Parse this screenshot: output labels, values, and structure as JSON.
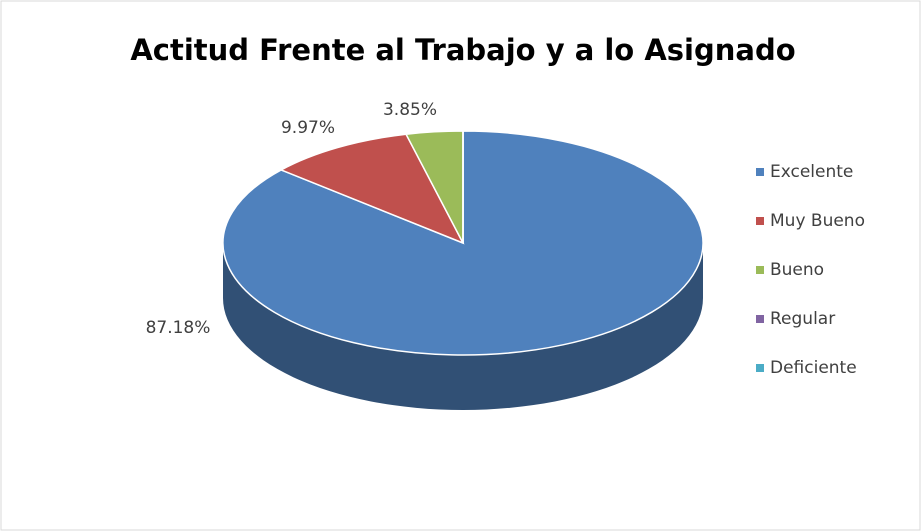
{
  "chart_data": {
    "type": "pie",
    "title": "Actitud Frente al Trabajo y a lo Asignado",
    "categories": [
      "Excelente",
      "Muy Bueno",
      "Bueno",
      "Regular",
      "Deficiente"
    ],
    "values": [
      87.18,
      9.97,
      3.85,
      0,
      0
    ],
    "value_labels": [
      "87.18%",
      "9.97%",
      "3.85%",
      null,
      null
    ],
    "colors": [
      "#4f81bd",
      "#c0504d",
      "#9bbb59",
      "#8064a2",
      "#4bacc6"
    ],
    "legend": "right"
  }
}
